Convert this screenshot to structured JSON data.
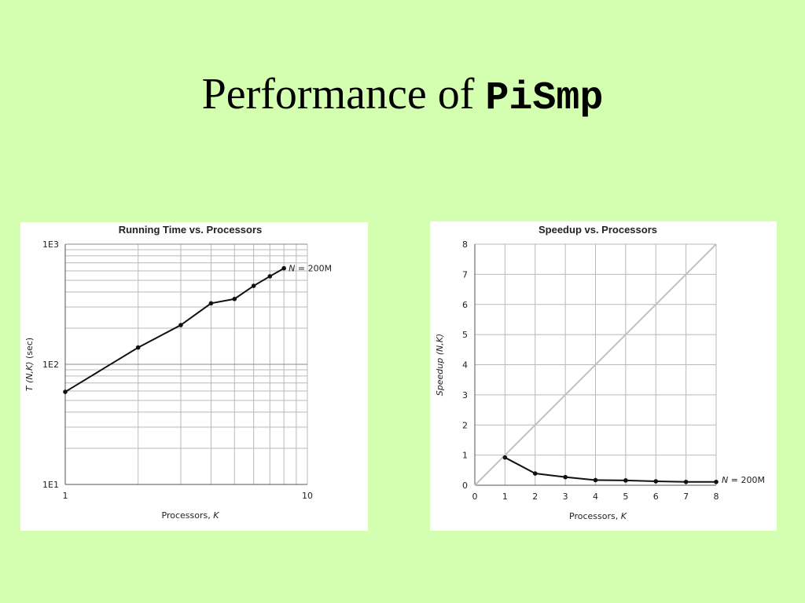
{
  "slide": {
    "title_text": "Performance of ",
    "title_code": "PiSmp"
  },
  "chart_data": [
    {
      "type": "line",
      "title": "Running Time vs. Processors",
      "xlabel_text": "Processors, ",
      "xlabel_var": "K",
      "ylabel_var": "T",
      "ylabel_args": "(N,K)",
      "ylabel_unit": "(sec)",
      "xscale": "log",
      "yscale": "log",
      "xlim": [
        1,
        10
      ],
      "ylim": [
        10,
        1000
      ],
      "x_ticks": [
        {
          "value": 1,
          "label": "1"
        },
        {
          "value": 10,
          "label": "10"
        }
      ],
      "y_ticks": [
        {
          "value": 10,
          "label": "1E1"
        },
        {
          "value": 100,
          "label": "1E2"
        },
        {
          "value": 1000,
          "label": "1E3"
        }
      ],
      "grid": true,
      "series": [
        {
          "label_var": "N",
          "label_value": " = 200M",
          "x": [
            1,
            2,
            3,
            4,
            5,
            6,
            7,
            8
          ],
          "y": [
            59,
            138,
            212,
            322,
            350,
            450,
            540,
            630
          ]
        }
      ]
    },
    {
      "type": "line",
      "title": "Speedup vs. Processors",
      "xlabel_text": "Processors, ",
      "xlabel_var": "K",
      "ylabel_var": "Speedup",
      "ylabel_args": "(N,K)",
      "xlim": [
        0,
        8
      ],
      "ylim": [
        0,
        8
      ],
      "x_ticks": [
        0,
        1,
        2,
        3,
        4,
        5,
        6,
        7,
        8
      ],
      "y_ticks": [
        0,
        1,
        2,
        3,
        4,
        5,
        6,
        7,
        8
      ],
      "grid": true,
      "ideal_line": {
        "x": [
          0,
          8
        ],
        "y": [
          0,
          8
        ],
        "color": "#c0c0c0"
      },
      "series": [
        {
          "label_var": "N",
          "label_value": " = 200M",
          "x": [
            1,
            2,
            3,
            4,
            5,
            6,
            7,
            8
          ],
          "y": [
            0.92,
            0.39,
            0.27,
            0.17,
            0.16,
            0.13,
            0.11,
            0.11
          ]
        }
      ]
    }
  ],
  "colors": {
    "background": "#d5ffb0",
    "series": "#111111",
    "grid": "#b8b8b8",
    "ideal": "#c0c0c0"
  }
}
